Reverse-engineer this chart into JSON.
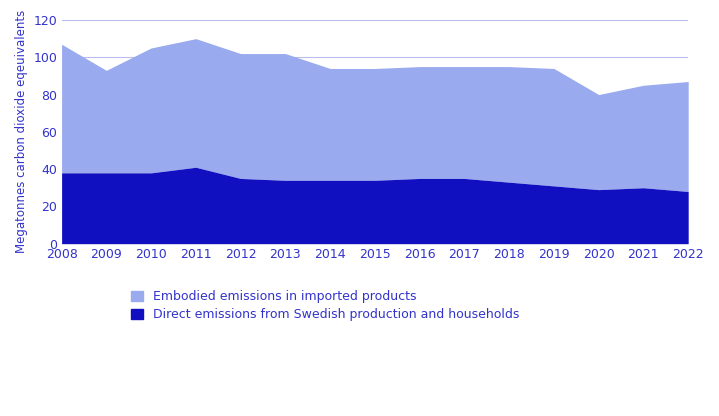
{
  "years": [
    2008,
    2009,
    2010,
    2011,
    2012,
    2013,
    2014,
    2015,
    2016,
    2017,
    2018,
    2019,
    2020,
    2021,
    2022
  ],
  "direct_emissions": [
    38,
    38,
    38,
    41,
    35,
    34,
    34,
    34,
    35,
    35,
    33,
    31,
    29,
    30,
    28
  ],
  "embodied_emissions": [
    69,
    55,
    67,
    69,
    67,
    68,
    60,
    60,
    60,
    60,
    62,
    63,
    51,
    55,
    59
  ],
  "color_direct": "#1010c0",
  "color_embodied": "#99aaee",
  "ylabel": "Megatonnes carbon dioxide eqeuivalents",
  "ylim": [
    0,
    120
  ],
  "yticks": [
    0,
    20,
    40,
    60,
    80,
    100,
    120
  ],
  "grid_yticks": [
    100,
    120
  ],
  "legend_embodied": "Embodied emissions in imported products",
  "legend_direct": "Direct emissions from Swedish production and households",
  "axis_color": "#3333cc",
  "grid_color": "#bbbbee",
  "background_color": "#ffffff",
  "figsize": [
    7.19,
    4.16
  ],
  "dpi": 100
}
